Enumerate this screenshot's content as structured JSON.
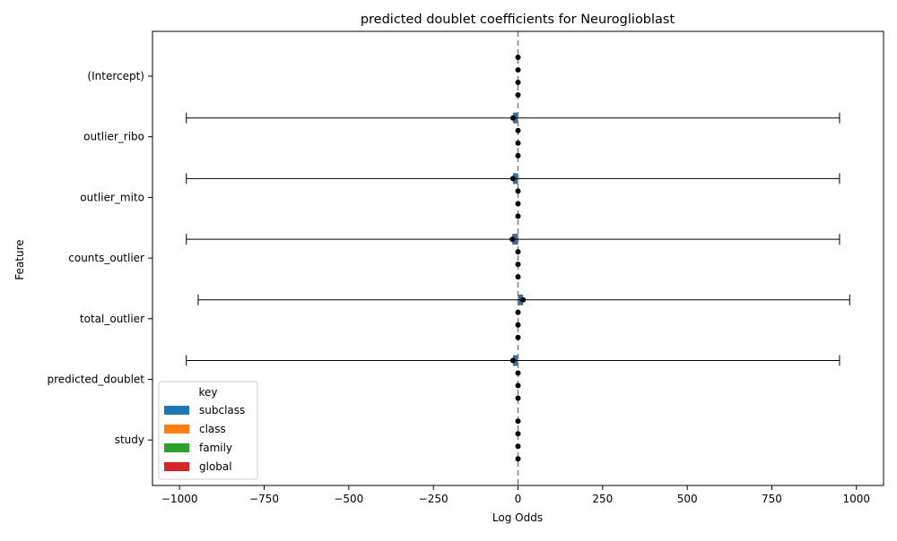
{
  "chart_data": {
    "type": "bar",
    "orientation": "horizontal",
    "title": "predicted doublet coefficients for Neuroglioblast",
    "xlabel": "Log Odds",
    "ylabel": "Feature",
    "xlim": [
      -1080,
      1080
    ],
    "xticks": [
      -1000,
      -750,
      -500,
      -250,
      0,
      250,
      500,
      750,
      1000
    ],
    "xtick_labels": [
      "−1000",
      "−750",
      "−500",
      "−250",
      "0",
      "250",
      "500",
      "750",
      "1000"
    ],
    "categories": [
      "(Intercept)",
      "outlier_ribo",
      "outlier_mito",
      "counts_outlier",
      "total_outlier",
      "predicted_doublet",
      "study"
    ],
    "reference_line": 0,
    "legend": {
      "title": "key",
      "position": "lower-left",
      "entries": [
        {
          "name": "subclass",
          "color": "#1f77b4"
        },
        {
          "name": "class",
          "color": "#ff7f0e"
        },
        {
          "name": "family",
          "color": "#2ca02c"
        },
        {
          "name": "global",
          "color": "#d62728"
        }
      ]
    },
    "series": [
      {
        "name": "subclass",
        "color": "#3a6e98",
        "values": [
          0,
          -15,
          -15,
          -17,
          15,
          -15,
          0
        ],
        "ci_low": [
          0,
          -980,
          -980,
          -980,
          -945,
          -980,
          0
        ],
        "ci_high": [
          0,
          950,
          950,
          950,
          980,
          950,
          0
        ]
      },
      {
        "name": "class",
        "color": "#e08b3a",
        "values": [
          0,
          0,
          0,
          0,
          0,
          0,
          0
        ],
        "ci_low": [
          0,
          0,
          0,
          0,
          0,
          0,
          0
        ],
        "ci_high": [
          0,
          0,
          0,
          0,
          0,
          0,
          0
        ]
      },
      {
        "name": "family",
        "color": "#3b913b",
        "values": [
          0,
          0,
          0,
          0,
          0,
          0,
          0
        ],
        "ci_low": [
          0,
          0,
          0,
          0,
          0,
          0,
          0
        ],
        "ci_high": [
          0,
          0,
          0,
          0,
          0,
          0,
          0
        ]
      },
      {
        "name": "global",
        "color": "#c44e52",
        "values": [
          0,
          0,
          0,
          0,
          0,
          0,
          0
        ],
        "ci_low": [
          0,
          0,
          0,
          0,
          0,
          0,
          0
        ],
        "ci_high": [
          0,
          0,
          0,
          0,
          0,
          0,
          0
        ]
      }
    ]
  }
}
